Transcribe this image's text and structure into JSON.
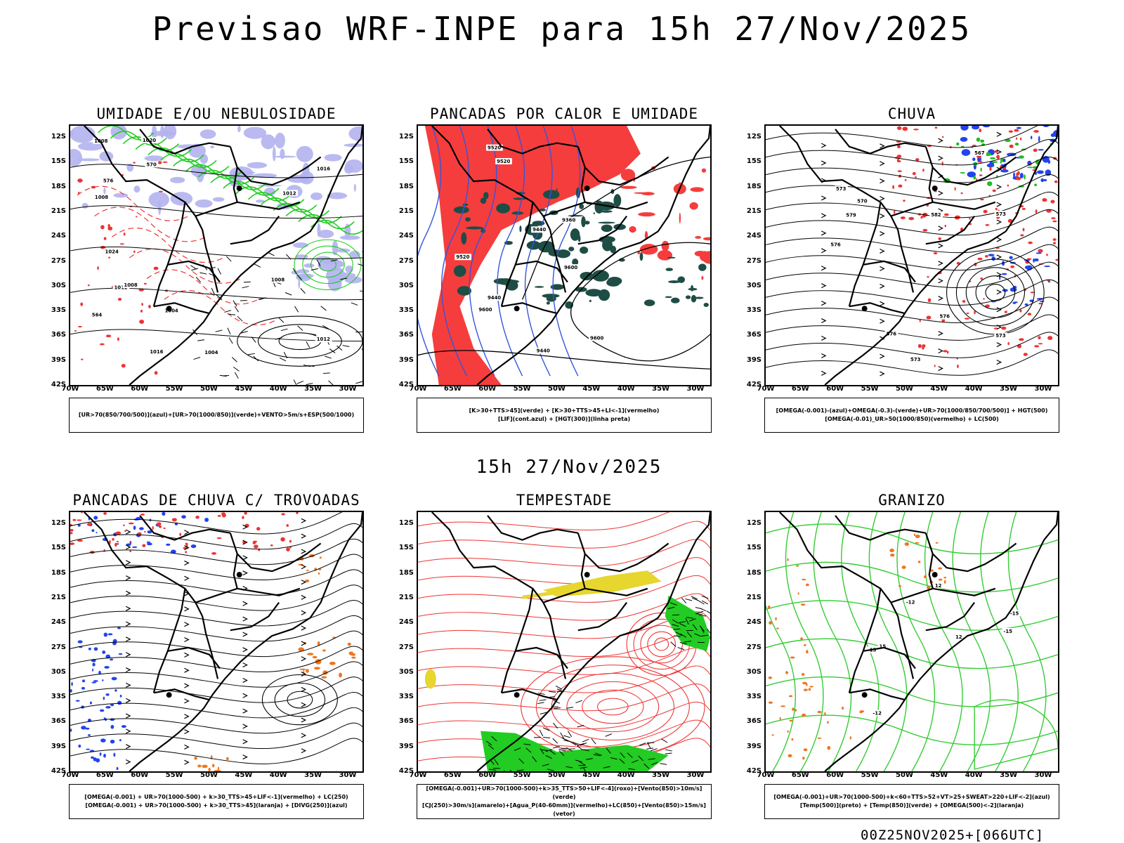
{
  "title": "Previsao WRF-INPE  para 15h 27/Nov/2025",
  "mid_title": "15h 27/Nov/2025",
  "footer": "00Z25NOV2025+[066UTC]",
  "axes": {
    "lat_labels": [
      "12S",
      "15S",
      "18S",
      "21S",
      "24S",
      "27S",
      "30S",
      "33S",
      "36S",
      "39S",
      "42S"
    ],
    "lon_labels": [
      "70W",
      "65W",
      "60W",
      "55W",
      "50W",
      "45W",
      "40W",
      "35W",
      "30W"
    ]
  },
  "panels": [
    {
      "title": "UMIDADE E/OU NEBULOSIDADE",
      "legend": [
        "[UR>70(850/700/500)](azul)+[UR>70(1000/850)](verde)+VENTO>5m/s+ESP(500/1000)"
      ],
      "contour_labels": [
        "1012",
        "1004",
        "1008",
        "1004",
        "1008",
        "1012",
        "1016",
        "1012",
        "1020",
        "1016",
        "1024",
        "1008",
        "1008",
        "570",
        "576",
        "564"
      ]
    },
    {
      "title": "PANCADAS POR CALOR E UMIDADE",
      "legend": [
        "[K>30+TTS>45](verde) + [K>30+TTS>45+LI<-1](vermelho)",
        "[LIF](cont.azul) + [HGT(300)](linha preta)"
      ],
      "contour_labels": [
        "9600",
        "9600",
        "9600",
        "9520",
        "9520",
        "9520",
        "9440",
        "9440",
        "9440",
        "9360"
      ]
    },
    {
      "title": "CHUVA",
      "legend": [
        "[OMEGA(-0.001)-(azul)+OMEGA(-0.3)-(verde)+UR>70(1000/850/700/500)] + HGT(500)",
        "[OMEGA(-0.01)_UR>50(1000/850)(vermelho) + LC(500)"
      ],
      "contour_labels": [
        "576",
        "576",
        "573",
        "576",
        "573",
        "573",
        "570",
        "567",
        "573",
        "582",
        "579"
      ]
    },
    {
      "title": "PANCADAS DE CHUVA C/ TROVOADAS",
      "legend": [
        "[OMEGA(-0.001) + UR>70(1000-500) + k>30_TTS>45+LIF<-1](vermelho) + LC(250)",
        "[OMEGA(-0.001) + UR>70(1000-500) + k>30_TTS>45](laranja) + [DIVG(250)](azul)"
      ],
      "contour_labels": []
    },
    {
      "title": "TEMPESTADE",
      "legend": [
        "[OMEGA(-0.001)+UR>70(1000-500)+k>35_TTS>50+LIF<-4](roxo)+[Vento(850)>10m/s](verde)",
        "[CJ(250)>30m/s](amarelo)+[Agua_P(40-60mm)](vermelho)+LC(850)+[Vento(850)>15m/s](vetor)"
      ],
      "contour_labels": []
    },
    {
      "title": "GRANIZO",
      "legend": [
        "[OMEGA(-0.001)+UR>70(1000-500)+k<60+TTS>52+VT>25+SWEAT>220+LIF<-2](azul)",
        "[Temp(500)](preto) + [Temp(850)](verde) + [OMEGA(500)<-2](laranja)"
      ],
      "contour_labels": [
        "-12",
        "-12",
        "-15",
        "-15",
        "-15",
        "12",
        "12",
        "15"
      ]
    }
  ],
  "colors": {
    "humidity_blue": "#b3b3f0",
    "humidity_green": "#22cc22",
    "thickness_red": "#ee3333",
    "conv_red": "#f53d3d",
    "conv_green": "#1e4d45",
    "lif_blue": "#3355dd",
    "rain_blue": "#2244ee",
    "rain_green": "#22bb22",
    "storm_orange": "#ee7722",
    "jet_yellow": "#e6d62e",
    "wind_green": "#22cc22",
    "temp_green": "#33cc33"
  }
}
